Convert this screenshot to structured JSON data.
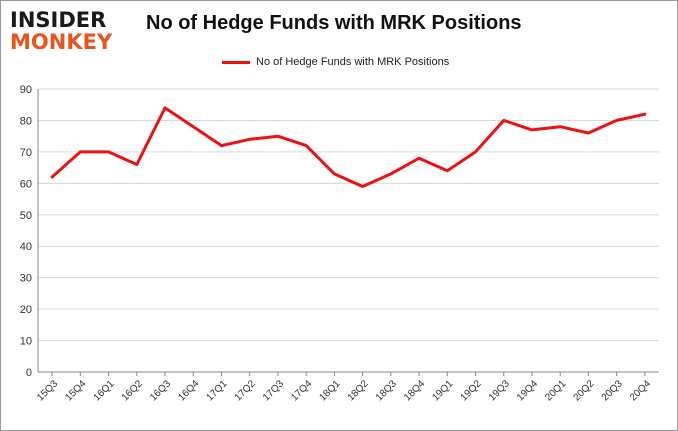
{
  "brand": {
    "line1": "INSIDER",
    "line2": "MONKEY",
    "colors": {
      "dark": "#1a1a1a",
      "accent": "#e8541c"
    }
  },
  "chart_data": {
    "type": "line",
    "title": "No of Hedge Funds with MRK Positions",
    "xlabel": "",
    "ylabel": "",
    "categories": [
      "15Q3",
      "15Q4",
      "16Q1",
      "16Q2",
      "16Q3",
      "16Q4",
      "17Q1",
      "17Q2",
      "17Q3",
      "17Q4",
      "18Q1",
      "18Q2",
      "18Q3",
      "18Q4",
      "19Q1",
      "19Q2",
      "19Q3",
      "19Q4",
      "20Q1",
      "20Q2",
      "20Q3",
      "20Q4"
    ],
    "series": [
      {
        "name": "No of Hedge Funds with MRK Positions",
        "color": "#ee1111",
        "values": [
          62,
          70,
          70,
          66,
          84,
          78,
          72,
          74,
          75,
          72,
          63,
          59,
          63,
          68,
          64,
          70,
          80,
          77,
          78,
          76,
          80,
          82
        ]
      }
    ],
    "ylim": [
      0,
      90
    ],
    "yticks": [
      0,
      10,
      20,
      30,
      40,
      50,
      60,
      70,
      80,
      90
    ],
    "grid": true,
    "legend": "top-center"
  }
}
